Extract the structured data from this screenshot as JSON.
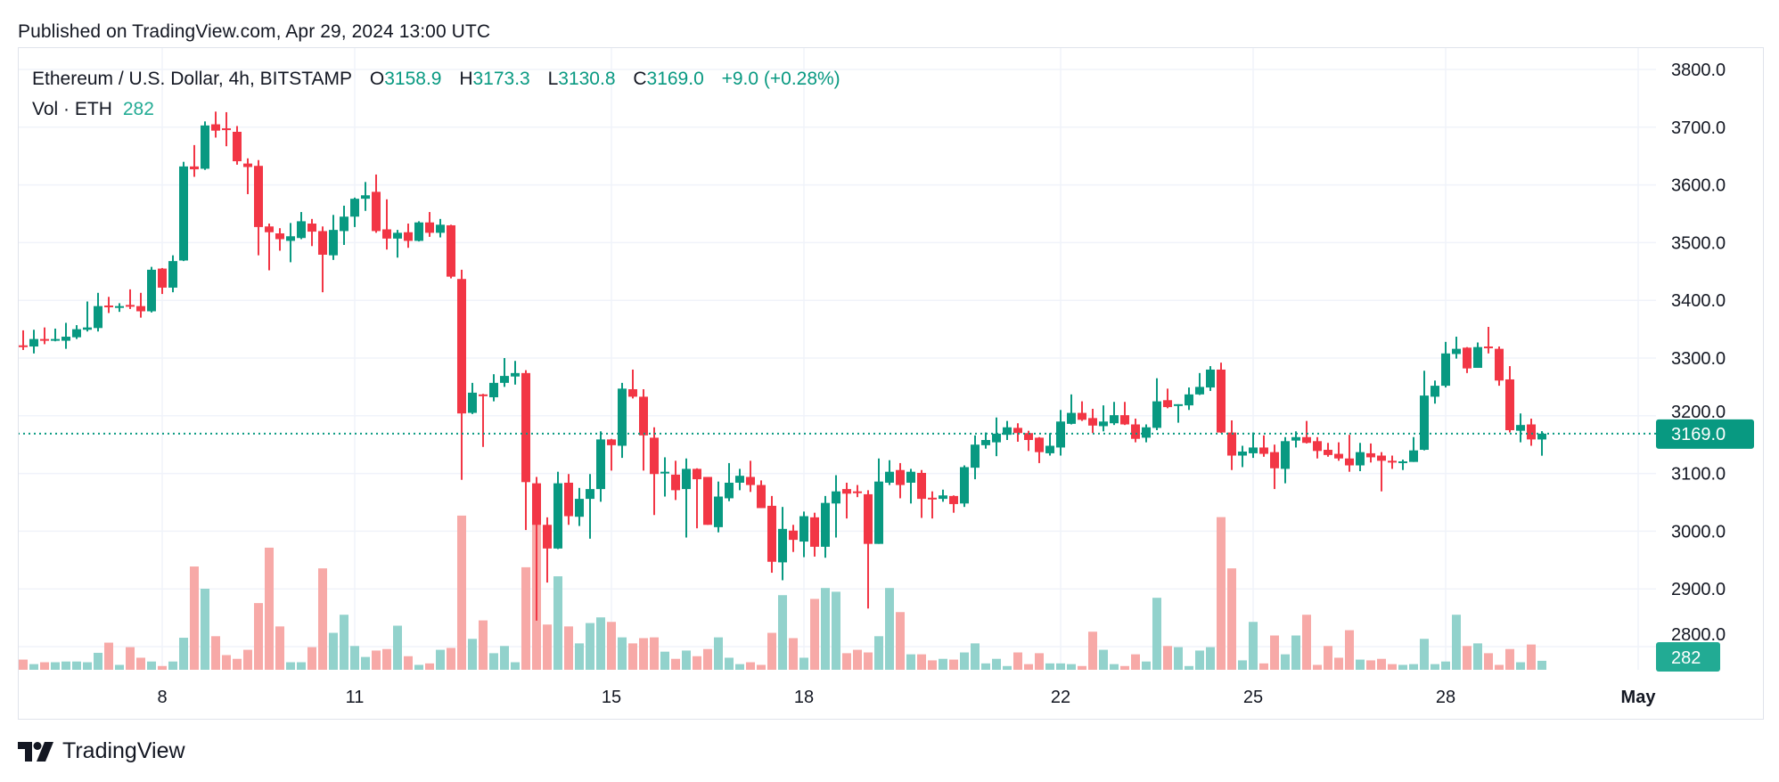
{
  "published": "Published on TradingView.com, Apr 29, 2024 13:00 UTC",
  "legend": {
    "symbol": "Ethereum / U.S. Dollar, 4h, BITSTAMP",
    "o_label": "O",
    "o": "3158.9",
    "h_label": "H",
    "h": "3173.3",
    "l_label": "L",
    "l": "3130.8",
    "c_label": "C",
    "c": "3169.0",
    "change": "+9.0 (+0.28%)",
    "vol_label": "Vol · ETH",
    "vol": "282"
  },
  "logo": {
    "text": "TradingView",
    "icon": "tradingview-logo-icon"
  },
  "colors": {
    "up": "#089981",
    "down": "#F23645",
    "vol_up": "#92D2CC",
    "vol_down": "#F7A9A7",
    "last_price": "#089981",
    "last_vol": "#22AB94",
    "grid": "#F0F3FA"
  },
  "chart_data": {
    "type": "candlestick",
    "symbol": "ETHUSD",
    "interval": "4h",
    "first_candle_time": "2024-04-05T20:00Z",
    "ylim": [
      2750,
      3850
    ],
    "y_ticks": [
      "3800.0",
      "3700.0",
      "3600.0",
      "3500.0",
      "3400.0",
      "3300.0",
      "3200.0",
      "3100.0",
      "3000.0",
      "2900.0",
      "2800.0"
    ],
    "x_ticks": [
      {
        "label": "8",
        "date": "2024-04-08"
      },
      {
        "label": "11",
        "date": "2024-04-11"
      },
      {
        "label": "15",
        "date": "2024-04-15"
      },
      {
        "label": "18",
        "date": "2024-04-18"
      },
      {
        "label": "22",
        "date": "2024-04-22"
      },
      {
        "label": "25",
        "date": "2024-04-25"
      },
      {
        "label": "28",
        "date": "2024-04-28"
      },
      {
        "label": "May",
        "date": "2024-05-01",
        "bold": true
      }
    ],
    "grid": true,
    "last_price": "3169.0",
    "last_volume": "282",
    "columns": [
      "open",
      "high",
      "low",
      "close",
      "volume"
    ],
    "candles": [
      [
        3322,
        3348,
        3314,
        3320,
        320
      ],
      [
        3320,
        3349,
        3308,
        3333,
        178
      ],
      [
        3333,
        3353,
        3324,
        3331,
        237
      ],
      [
        3331,
        3351,
        3329,
        3333,
        237
      ],
      [
        3330,
        3361,
        3316,
        3337,
        260
      ],
      [
        3336,
        3357,
        3333,
        3350,
        260
      ],
      [
        3349,
        3398,
        3346,
        3353,
        237
      ],
      [
        3352,
        3413,
        3346,
        3390,
        533
      ],
      [
        3391,
        3406,
        3378,
        3389,
        853
      ],
      [
        3388,
        3395,
        3380,
        3390,
        154
      ],
      [
        3392,
        3419,
        3385,
        3389,
        711
      ],
      [
        3390,
        3413,
        3370,
        3381,
        379
      ],
      [
        3381,
        3458,
        3379,
        3453,
        260
      ],
      [
        3455,
        3456,
        3411,
        3422,
        118
      ],
      [
        3422,
        3478,
        3414,
        3468,
        260
      ],
      [
        3469,
        3640,
        3468,
        3632,
        1007
      ],
      [
        3632,
        3669,
        3614,
        3627,
        3247
      ],
      [
        3628,
        3710,
        3626,
        3703,
        2548
      ],
      [
        3705,
        3727,
        3682,
        3694,
        1055
      ],
      [
        3698,
        3726,
        3667,
        3696,
        462
      ],
      [
        3692,
        3702,
        3635,
        3641,
        344
      ],
      [
        3637,
        3646,
        3584,
        3631,
        628
      ],
      [
        3633,
        3643,
        3478,
        3527,
        2097
      ],
      [
        3528,
        3533,
        3452,
        3518,
        3839
      ],
      [
        3516,
        3525,
        3486,
        3506,
        1363
      ],
      [
        3503,
        3534,
        3466,
        3511,
        237
      ],
      [
        3508,
        3553,
        3506,
        3537,
        237
      ],
      [
        3533,
        3541,
        3494,
        3519,
        711
      ],
      [
        3520,
        3528,
        3414,
        3479,
        3188
      ],
      [
        3478,
        3548,
        3470,
        3522,
        1161
      ],
      [
        3520,
        3564,
        3496,
        3545,
        1730
      ],
      [
        3545,
        3578,
        3527,
        3576,
        747
      ],
      [
        3576,
        3605,
        3555,
        3582,
        403
      ],
      [
        3588,
        3618,
        3517,
        3520,
        604
      ],
      [
        3523,
        3575,
        3488,
        3507,
        652
      ],
      [
        3507,
        3522,
        3474,
        3517,
        1386
      ],
      [
        3518,
        3533,
        3491,
        3503,
        427
      ],
      [
        3503,
        3537,
        3502,
        3535,
        154
      ],
      [
        3535,
        3553,
        3510,
        3517,
        201
      ],
      [
        3517,
        3541,
        3509,
        3531,
        628
      ],
      [
        3530,
        3531,
        3438,
        3441,
        687
      ],
      [
        3437,
        3453,
        3089,
        3204,
        4847
      ],
      [
        3205,
        3257,
        3203,
        3240,
        972
      ],
      [
        3237,
        3238,
        3146,
        3234,
        1552
      ],
      [
        3232,
        3272,
        3225,
        3257,
        521
      ],
      [
        3257,
        3300,
        3250,
        3269,
        747
      ],
      [
        3268,
        3295,
        3254,
        3274,
        237
      ],
      [
        3274,
        3279,
        3002,
        3085,
        3223
      ],
      [
        3083,
        3094,
        2845,
        3011,
        4610
      ],
      [
        3011,
        3024,
        2911,
        2970,
        1422
      ],
      [
        2970,
        3103,
        2969,
        3083,
        2939
      ],
      [
        3084,
        3099,
        3011,
        3026,
        1363
      ],
      [
        3025,
        3075,
        3009,
        3056,
        830
      ],
      [
        3056,
        3099,
        2987,
        3073,
        1469
      ],
      [
        3073,
        3173,
        3051,
        3159,
        1647
      ],
      [
        3159,
        3160,
        3105,
        3149,
        1505
      ],
      [
        3148,
        3257,
        3127,
        3247,
        1019
      ],
      [
        3246,
        3280,
        3230,
        3233,
        830
      ],
      [
        3233,
        3246,
        3105,
        3166,
        995
      ],
      [
        3162,
        3180,
        3028,
        3099,
        1019
      ],
      [
        3100,
        3128,
        3060,
        3103,
        569
      ],
      [
        3098,
        3122,
        3054,
        3071,
        344
      ],
      [
        3073,
        3126,
        2989,
        3108,
        604
      ],
      [
        3108,
        3109,
        3005,
        3090,
        427
      ],
      [
        3094,
        3094,
        3011,
        3011,
        652
      ],
      [
        3007,
        3086,
        2998,
        3060,
        1019
      ],
      [
        3057,
        3118,
        3052,
        3084,
        379
      ],
      [
        3084,
        3108,
        3071,
        3096,
        178
      ],
      [
        3094,
        3122,
        3068,
        3080,
        237
      ],
      [
        3080,
        3088,
        3040,
        3040,
        154
      ],
      [
        3044,
        3061,
        2928,
        2947,
        1161
      ],
      [
        2946,
        3042,
        2915,
        3004,
        2346
      ],
      [
        3001,
        3011,
        2964,
        2985,
        995
      ],
      [
        2982,
        3034,
        2955,
        3026,
        379
      ],
      [
        3024,
        3032,
        2956,
        2973,
        2228
      ],
      [
        2973,
        3061,
        2954,
        3049,
        2571
      ],
      [
        3048,
        3097,
        2989,
        3069,
        2453
      ],
      [
        3073,
        3084,
        3022,
        3065,
        521
      ],
      [
        3069,
        3080,
        3059,
        3067,
        628
      ],
      [
        3064,
        3071,
        2866,
        2978,
        545
      ],
      [
        2978,
        3126,
        2978,
        3086,
        1055
      ],
      [
        3084,
        3123,
        3080,
        3103,
        2571
      ],
      [
        3106,
        3118,
        3057,
        3080,
        1813
      ],
      [
        3084,
        3108,
        3048,
        3103,
        486
      ],
      [
        3101,
        3106,
        3023,
        3056,
        486
      ],
      [
        3058,
        3069,
        3022,
        3055,
        296
      ],
      [
        3056,
        3072,
        3051,
        3062,
        344
      ],
      [
        3061,
        3062,
        3032,
        3047,
        320
      ],
      [
        3048,
        3114,
        3042,
        3111,
        545
      ],
      [
        3110,
        3166,
        3090,
        3150,
        830
      ],
      [
        3149,
        3171,
        3143,
        3158,
        201
      ],
      [
        3154,
        3197,
        3130,
        3169,
        344
      ],
      [
        3167,
        3191,
        3158,
        3180,
        118
      ],
      [
        3179,
        3187,
        3155,
        3170,
        545
      ],
      [
        3170,
        3174,
        3139,
        3158,
        178
      ],
      [
        3162,
        3163,
        3118,
        3137,
        521
      ],
      [
        3135,
        3170,
        3131,
        3148,
        201
      ],
      [
        3145,
        3210,
        3131,
        3190,
        201
      ],
      [
        3186,
        3237,
        3185,
        3205,
        178
      ],
      [
        3205,
        3225,
        3191,
        3193,
        118
      ],
      [
        3196,
        3212,
        3170,
        3183,
        1197
      ],
      [
        3182,
        3218,
        3173,
        3190,
        628
      ],
      [
        3187,
        3224,
        3184,
        3201,
        178
      ],
      [
        3201,
        3224,
        3184,
        3185,
        118
      ],
      [
        3185,
        3195,
        3154,
        3160,
        486
      ],
      [
        3162,
        3185,
        3154,
        3180,
        260
      ],
      [
        3179,
        3265,
        3175,
        3225,
        2263
      ],
      [
        3227,
        3247,
        3213,
        3215,
        747
      ],
      [
        3217,
        3220,
        3188,
        3220,
        711
      ],
      [
        3218,
        3249,
        3210,
        3237,
        118
      ],
      [
        3237,
        3274,
        3236,
        3250,
        604
      ],
      [
        3249,
        3286,
        3243,
        3280,
        711
      ],
      [
        3280,
        3292,
        3170,
        3171,
        4799
      ],
      [
        3171,
        3192,
        3106,
        3131,
        3188
      ],
      [
        3131,
        3148,
        3111,
        3138,
        296
      ],
      [
        3135,
        3171,
        3127,
        3145,
        1505
      ],
      [
        3145,
        3166,
        3129,
        3134,
        201
      ],
      [
        3137,
        3150,
        3073,
        3109,
        1078
      ],
      [
        3108,
        3163,
        3083,
        3156,
        486
      ],
      [
        3157,
        3173,
        3145,
        3163,
        1078
      ],
      [
        3163,
        3191,
        3152,
        3153,
        1730
      ],
      [
        3156,
        3163,
        3126,
        3139,
        154
      ],
      [
        3141,
        3153,
        3129,
        3132,
        747
      ],
      [
        3134,
        3154,
        3122,
        3126,
        379
      ],
      [
        3126,
        3167,
        3103,
        3114,
        1244
      ],
      [
        3114,
        3153,
        3104,
        3137,
        320
      ],
      [
        3135,
        3152,
        3119,
        3128,
        296
      ],
      [
        3131,
        3137,
        3069,
        3122,
        344
      ],
      [
        3122,
        3131,
        3108,
        3120,
        178
      ],
      [
        3118,
        3124,
        3106,
        3121,
        154
      ],
      [
        3120,
        3163,
        3120,
        3140,
        178
      ],
      [
        3141,
        3278,
        3140,
        3235,
        972
      ],
      [
        3233,
        3261,
        3221,
        3252,
        178
      ],
      [
        3252,
        3328,
        3249,
        3308,
        260
      ],
      [
        3307,
        3337,
        3299,
        3316,
        1730
      ],
      [
        3318,
        3319,
        3274,
        3282,
        747
      ],
      [
        3283,
        3327,
        3283,
        3319,
        830
      ],
      [
        3320,
        3354,
        3308,
        3318,
        521
      ],
      [
        3316,
        3320,
        3252,
        3261,
        154
      ],
      [
        3263,
        3286,
        3171,
        3175,
        652
      ],
      [
        3174,
        3204,
        3154,
        3184,
        237
      ],
      [
        3185,
        3195,
        3148,
        3159,
        794
      ],
      [
        3158.9,
        3173.3,
        3130.8,
        3169.0,
        282
      ]
    ]
  }
}
